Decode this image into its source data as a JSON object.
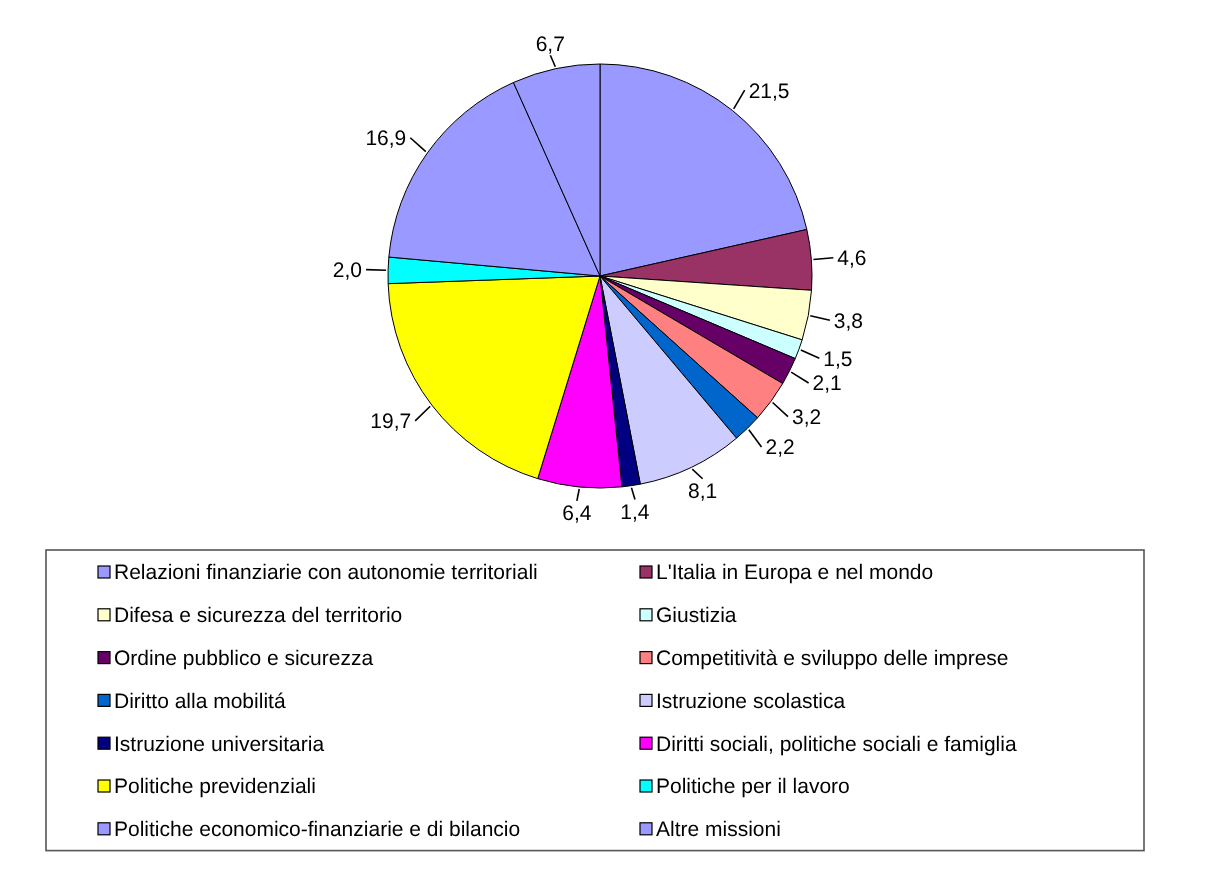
{
  "chart_data": {
    "type": "pie",
    "categories": [
      "Relazioni finanziarie con autonomie territoriali",
      "L'Italia in Europa e nel mondo",
      "Difesa e sicurezza del territorio",
      "Giustizia",
      "Ordine pubblico e sicurezza",
      "Competitività e sviluppo delle imprese",
      "Diritto alla mobilitá",
      "Istruzione scolastica",
      "Istruzione universitaria",
      "Diritti sociali, politiche sociali e famiglia",
      "Politiche previdenziali",
      "Politiche per il lavoro",
      "Politiche economico-finanziarie e di bilancio",
      "Altre missioni"
    ],
    "values": [
      21.5,
      4.6,
      3.8,
      1.5,
      2.1,
      3.2,
      2.2,
      8.1,
      1.4,
      6.4,
      19.7,
      2.0,
      16.9,
      6.7
    ],
    "value_labels": [
      "21,5",
      "4,6",
      "3,8",
      "1,5",
      "2,1",
      "3,2",
      "2,2",
      "8,1",
      "1,4",
      "6,4",
      "19,7",
      "2,0",
      "16,9",
      "6,7"
    ],
    "colors": [
      "#9999ff",
      "#993366",
      "#ffffcc",
      "#ccffff",
      "#660066",
      "#ff8080",
      "#0066cc",
      "#ccccff",
      "#000080",
      "#ff00ff",
      "#ffff00",
      "#00ffff",
      "#9999ff",
      "#9999ff"
    ],
    "legend": "bottom"
  }
}
